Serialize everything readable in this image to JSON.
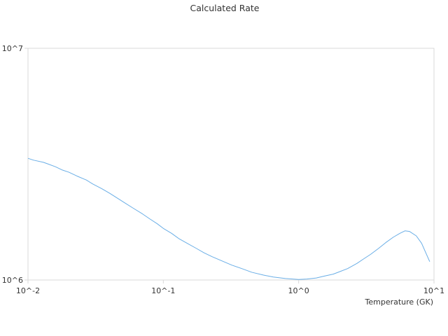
{
  "chart_data": {
    "type": "line",
    "title": "Calculated Rate",
    "xlabel": "Temperature (GK)",
    "ylabel": "",
    "x_scale": "log",
    "y_scale": "log",
    "xlim": [
      0.01,
      10
    ],
    "ylim": [
      1000000,
      10000000
    ],
    "x_ticks": [
      {
        "value": 0.01,
        "label": "10^-2"
      },
      {
        "value": 0.1,
        "label": "10^-1"
      },
      {
        "value": 1,
        "label": "10^0"
      },
      {
        "value": 10,
        "label": "10^1"
      }
    ],
    "y_ticks": [
      {
        "value": 1000000,
        "label": "10^6"
      },
      {
        "value": 10000000,
        "label": "10^7"
      }
    ],
    "grid": false,
    "legend": "none",
    "series": [
      {
        "color": "#6aaee6",
        "points": [
          [
            0.01,
            3350000
          ],
          [
            0.011,
            3290000
          ],
          [
            0.013,
            3220000
          ],
          [
            0.014,
            3170000
          ],
          [
            0.016,
            3080000
          ],
          [
            0.018,
            2980000
          ],
          [
            0.02,
            2920000
          ],
          [
            0.023,
            2810000
          ],
          [
            0.027,
            2700000
          ],
          [
            0.03,
            2600000
          ],
          [
            0.035,
            2480000
          ],
          [
            0.04,
            2370000
          ],
          [
            0.045,
            2270000
          ],
          [
            0.052,
            2150000
          ],
          [
            0.06,
            2040000
          ],
          [
            0.07,
            1930000
          ],
          [
            0.08,
            1830000
          ],
          [
            0.09,
            1750000
          ],
          [
            0.1,
            1670000
          ],
          [
            0.115,
            1590000
          ],
          [
            0.13,
            1510000
          ],
          [
            0.15,
            1440000
          ],
          [
            0.175,
            1370000
          ],
          [
            0.2,
            1310000
          ],
          [
            0.23,
            1260000
          ],
          [
            0.27,
            1210000
          ],
          [
            0.32,
            1160000
          ],
          [
            0.38,
            1120000
          ],
          [
            0.45,
            1080000
          ],
          [
            0.55,
            1050000
          ],
          [
            0.65,
            1030000
          ],
          [
            0.8,
            1015000
          ],
          [
            1.0,
            1005000
          ],
          [
            1.15,
            1010000
          ],
          [
            1.35,
            1020000
          ],
          [
            1.55,
            1040000
          ],
          [
            1.8,
            1060000
          ],
          [
            2.0,
            1085000
          ],
          [
            2.3,
            1120000
          ],
          [
            2.7,
            1180000
          ],
          [
            3.0,
            1230000
          ],
          [
            3.4,
            1290000
          ],
          [
            3.9,
            1370000
          ],
          [
            4.4,
            1450000
          ],
          [
            5.0,
            1530000
          ],
          [
            5.6,
            1590000
          ],
          [
            6.1,
            1630000
          ],
          [
            6.6,
            1620000
          ],
          [
            7.4,
            1550000
          ],
          [
            8.1,
            1440000
          ],
          [
            8.7,
            1310000
          ],
          [
            9.3,
            1200000
          ]
        ]
      }
    ]
  }
}
